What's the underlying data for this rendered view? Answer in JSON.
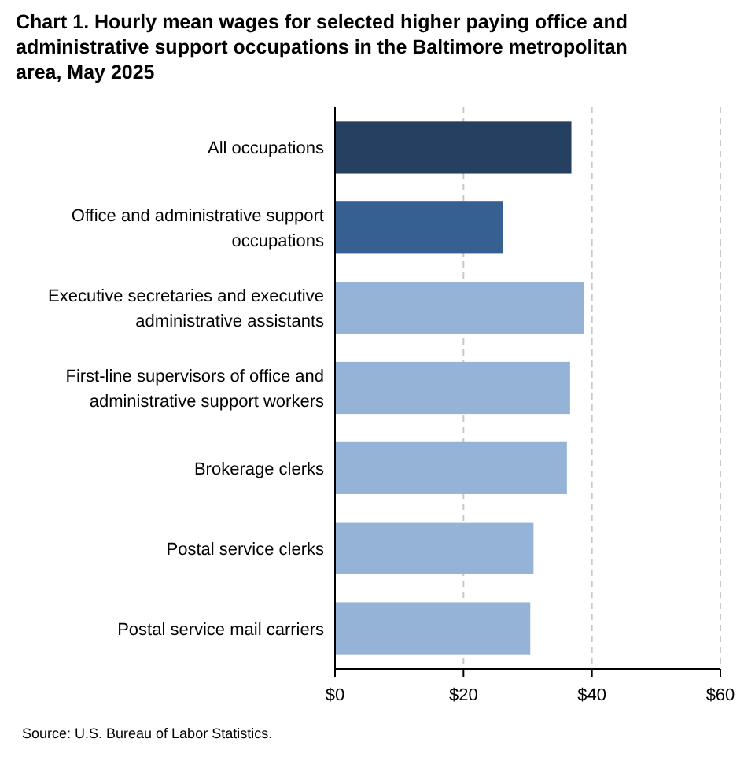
{
  "chart_data": {
    "type": "bar",
    "orientation": "horizontal",
    "title": "Chart 1. Hourly mean wages for selected higher paying office and administrative support occupations in the Baltimore metropolitan area, May 2025",
    "categories": [
      "All occupations",
      "Office and administrative support occupations",
      "Executive secretaries and executive administrative assistants",
      "First-line supervisors of office and administrative support workers",
      "Brokerage clerks",
      "Postal service clerks",
      "Postal service mail carriers"
    ],
    "values": [
      36.8,
      26.2,
      38.8,
      36.6,
      36.1,
      30.9,
      30.4
    ],
    "colors": [
      "#254061",
      "#366092",
      "#95b3d7",
      "#95b3d7",
      "#95b3d7",
      "#95b3d7",
      "#95b3d7"
    ],
    "xlim": [
      0,
      60
    ],
    "xticks": [
      {
        "value": 0,
        "label": "$0"
      },
      {
        "value": 20,
        "label": "$20"
      },
      {
        "value": 40,
        "label": "$40"
      },
      {
        "value": 60,
        "label": "$60"
      }
    ],
    "grid": "x",
    "annotations": [
      "Source: U.S. Bureau of Labor Statistics."
    ]
  }
}
